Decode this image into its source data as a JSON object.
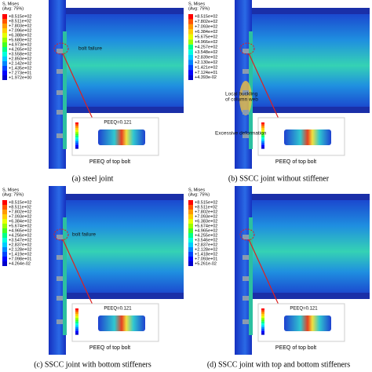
{
  "panels": [
    {
      "caption": "(a) steel joint",
      "legend_title": "S, Mises",
      "legend_avg": "(Avg: 75%)",
      "legend_values": [
        "+8.515e+02",
        "+8.511e+02",
        "+7.803e+02",
        "+7.096e+02",
        "+6.388e+02",
        "+5.680e+02",
        "+4.973e+02",
        "+4.265e+02",
        "+3.558e+02",
        "+2.850e+02",
        "+2.142e+02",
        "+1.435e+02",
        "+7.273e+01",
        "+1.972e+00"
      ],
      "annotations": [
        [
          "bolt failure"
        ]
      ],
      "peeq_label": "PEEQ=0.121",
      "inset_caption": "PEEQ of top bolt"
    },
    {
      "caption": "(b) SSCC joint without stiffener",
      "legend_title": "S, Mises",
      "legend_avg": "(Avg: 75%)",
      "legend_values": [
        "+8.515e+02",
        "+7.802e+02",
        "+7.093e+02",
        "+6.384e+02",
        "+5.675e+02",
        "+4.966e+02",
        "+4.257e+02",
        "+3.548e+02",
        "+2.839e+02",
        "+2.130e+02",
        "+1.421e+02",
        "+7.124e+01",
        "+4.393e-02"
      ],
      "annotations": [
        [
          "Local buckling",
          "of column web"
        ],
        [
          "Excessive deformation"
        ]
      ],
      "inset_caption": "PEEQ of top bolt"
    },
    {
      "caption": "(c) SSCC joint with bottom stiffeners",
      "legend_title": "S, Mises",
      "legend_avg": "(Avg: 75%)",
      "legend_values": [
        "+8.515e+02",
        "+8.511e+02",
        "+7.802e+02",
        "+7.093e+02",
        "+6.384e+02",
        "+5.674e+02",
        "+4.965e+02",
        "+4.256e+02",
        "+3.547e+02",
        "+2.837e+02",
        "+2.128e+02",
        "+1.419e+02",
        "+7.098e+01",
        "+4.264e-02"
      ],
      "annotations": [
        [
          "bolt failure"
        ]
      ],
      "peeq_label": "PEEQ=0.121",
      "inset_caption": "PEEQ of top bolt"
    },
    {
      "caption": "(d) SSCC joint with top and bottom stiffeners",
      "legend_title": "S, Mises",
      "legend_avg": "(Avg: 75%)",
      "legend_values": [
        "+8.515e+02",
        "+8.511e+02",
        "+7.802e+02",
        "+7.093e+02",
        "+6.383e+02",
        "+5.674e+02",
        "+4.965e+02",
        "+4.255e+02",
        "+3.546e+02",
        "+2.837e+02",
        "+2.128e+02",
        "+1.418e+02",
        "+7.093e+01",
        "+5.261e-02"
      ],
      "annotations": [],
      "peeq_label": "PEEQ=0.121",
      "inset_caption": "PEEQ of top bolt"
    }
  ]
}
